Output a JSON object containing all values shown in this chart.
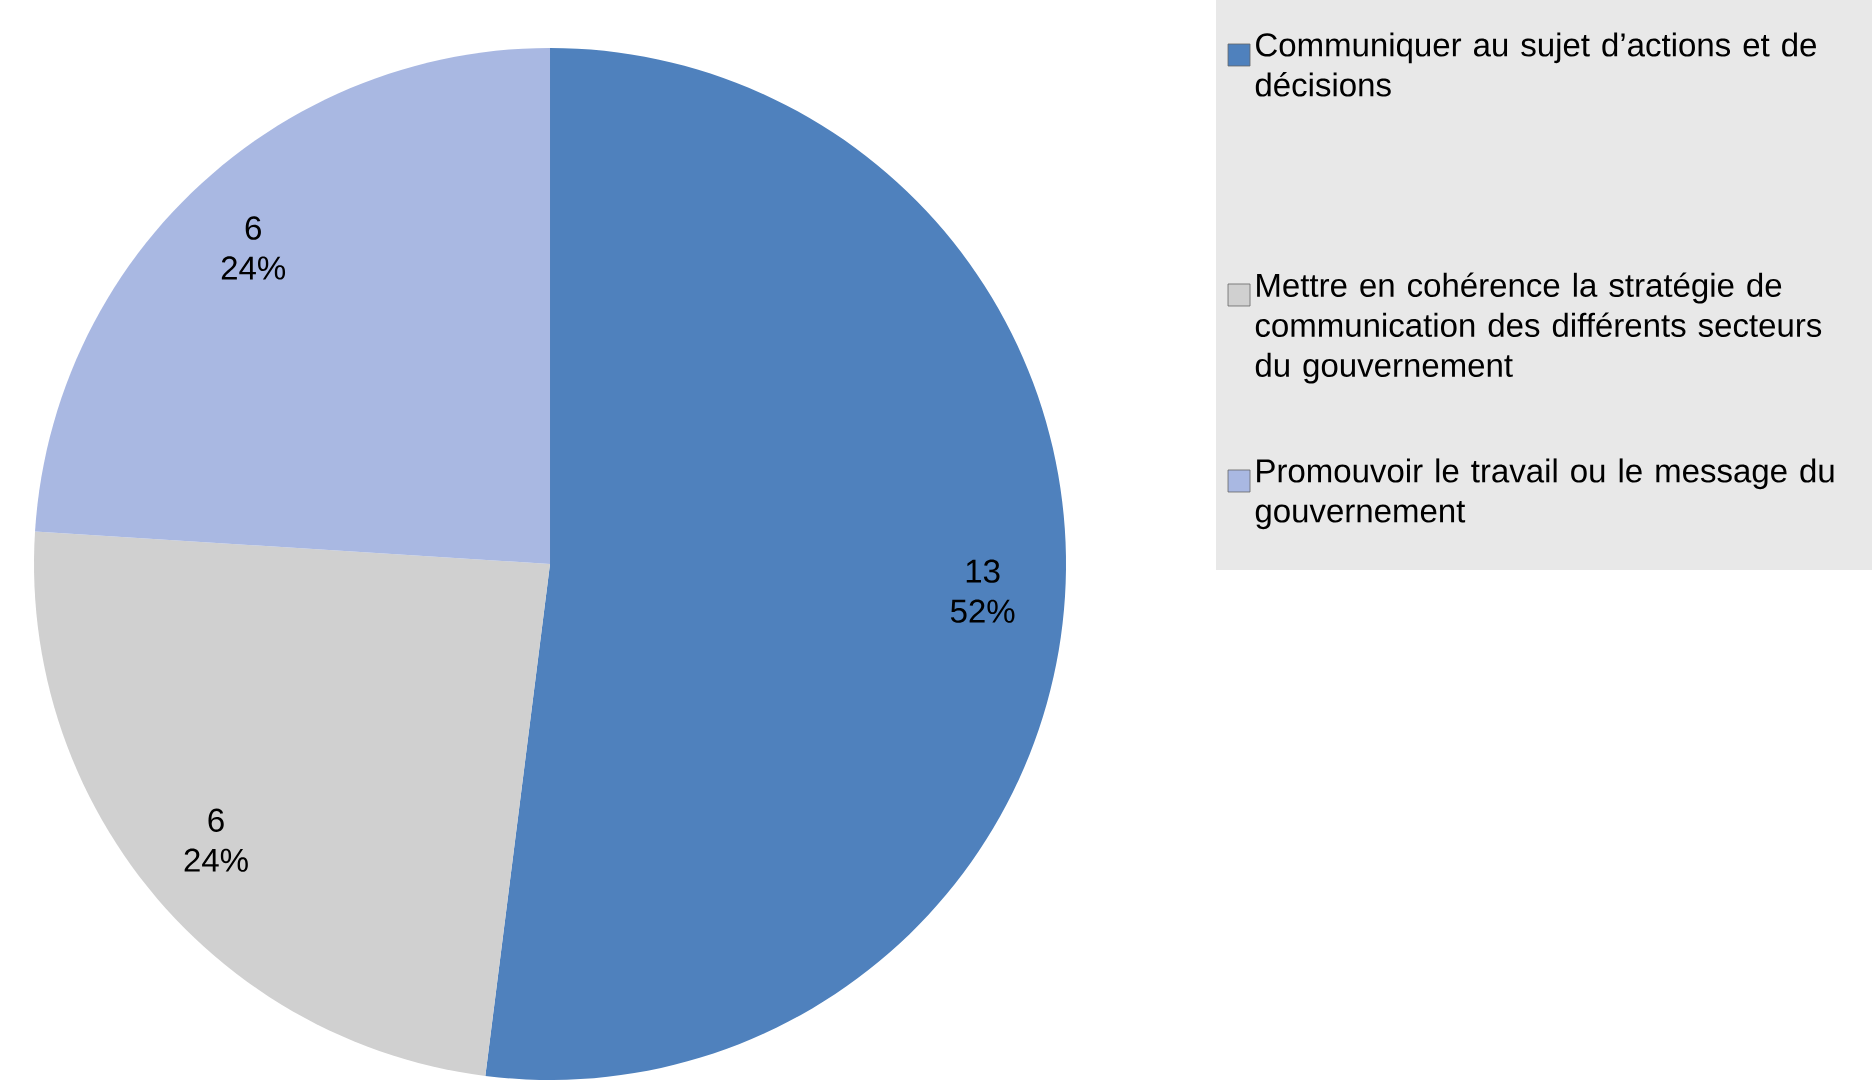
{
  "chart_data": {
    "type": "pie",
    "categories": [
      "Communiquer au sujet d’actions et de décisions",
      "Mettre en cohérence la stratégie de communication des différents secteurs du gouvernement",
      "Promouvoir le travail ou le message du gouvernement"
    ],
    "values": [
      13,
      6,
      6
    ],
    "colors": [
      "#4f81bd",
      "#d0d0d0",
      "#a9b8e2"
    ],
    "value_labels": [
      "13 52%",
      "6 24%",
      "6 24%"
    ],
    "legend": "top right"
  }
}
